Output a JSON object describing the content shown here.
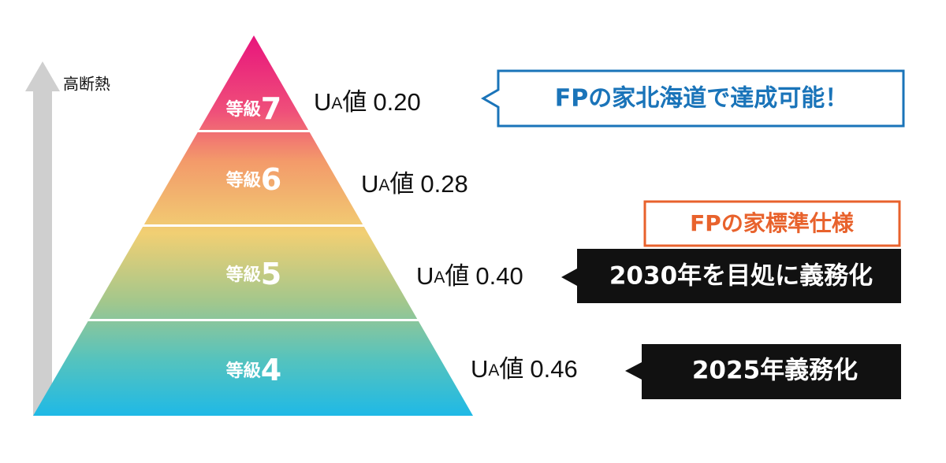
{
  "axis_label": "高断熱",
  "levels": [
    {
      "prefix": "等級",
      "grade": "7",
      "ua_u": "U",
      "ua_a": "A",
      "ua_word": "値",
      "ua_value": "0.20"
    },
    {
      "prefix": "等級",
      "grade": "6",
      "ua_u": "U",
      "ua_a": "A",
      "ua_word": "値",
      "ua_value": "0.28"
    },
    {
      "prefix": "等級",
      "grade": "5",
      "ua_u": "U",
      "ua_a": "A",
      "ua_word": "値",
      "ua_value": "0.40"
    },
    {
      "prefix": "等級",
      "grade": "4",
      "ua_u": "U",
      "ua_a": "A",
      "ua_word": "値",
      "ua_value": "0.46"
    }
  ],
  "callouts": {
    "hokkaido": "FPの家北海道で達成可能！",
    "standard": "FPの家標準仕様",
    "mandatory_2030": "2030年を目処に義務化",
    "mandatory_2025": "2025年義務化"
  }
}
